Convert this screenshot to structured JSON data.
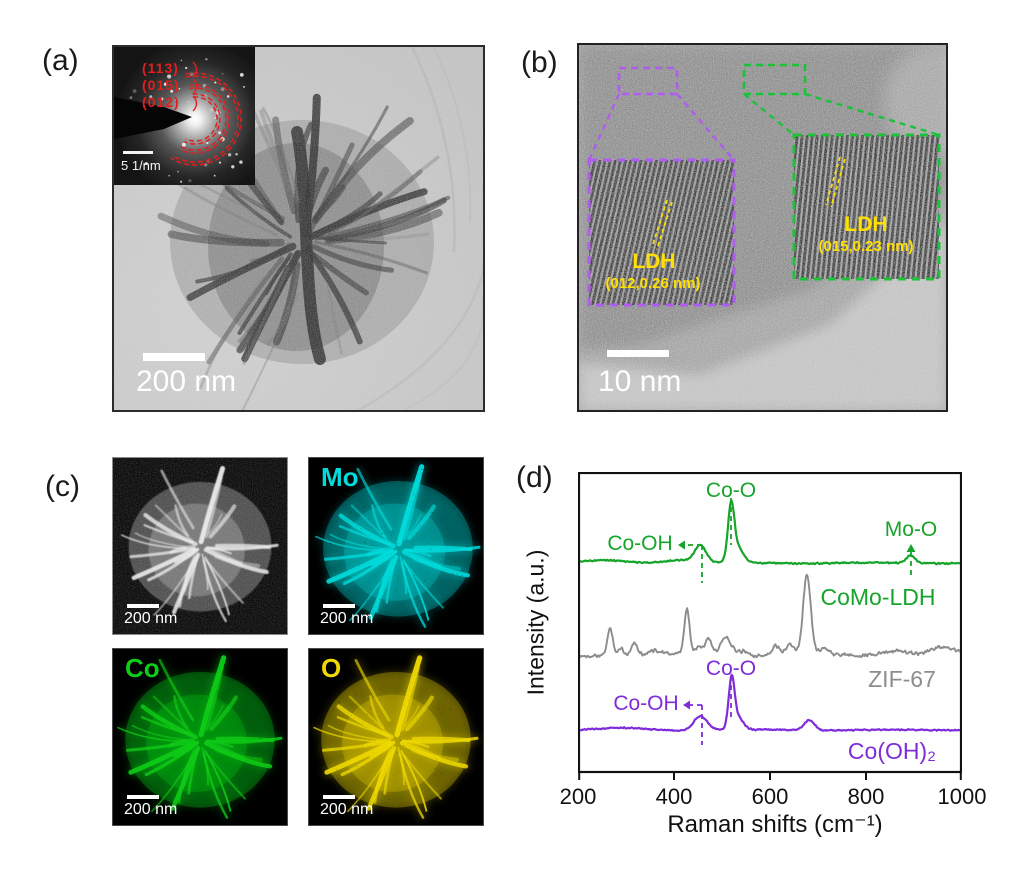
{
  "figure": {
    "panel_a": {
      "label": "(a)",
      "scale_bar": "200 nm",
      "saed": {
        "rings": [
          "(113)",
          "(015)",
          "(012)"
        ],
        "ring_color": "#E0201F",
        "scale_bar": "5 1/nm"
      }
    },
    "panel_b": {
      "label": "(b)",
      "scale_bar": "10 nm",
      "insets": [
        {
          "title": "LDH",
          "detail": "(012,0.26 nm)",
          "box_color": "#B05CF0",
          "text_color": "#FFE000"
        },
        {
          "title": "LDH",
          "detail": "(015,0.23 nm)",
          "box_color": "#1CC239",
          "text_color": "#FFE000"
        }
      ]
    },
    "panel_c": {
      "label": "(c)",
      "maps": [
        {
          "label": "",
          "scale_bar": "200 nm",
          "color": "#ededed"
        },
        {
          "label": "Mo",
          "scale_bar": "200 nm",
          "color": "#00DCDC"
        },
        {
          "label": "Co",
          "scale_bar": "200 nm",
          "color": "#0ECC17"
        },
        {
          "label": "O",
          "scale_bar": "200 nm",
          "color": "#EFD900"
        }
      ]
    },
    "panel_d": {
      "label": "(d)"
    }
  },
  "chart_data": {
    "type": "line",
    "xlabel": "Raman shifts (cm⁻¹)",
    "ylabel": "Intensity (a.u.)",
    "xlim": [
      200,
      1000
    ],
    "x_ticks": [
      200,
      400,
      600,
      800,
      1000
    ],
    "grid": false,
    "legend_position": "inline-right",
    "series": [
      {
        "name": "CoMo-LDH",
        "color": "#17A42B",
        "baseline_au": 91,
        "noise_au": 0.9,
        "peaks_cm_h_w": [
          [
            455,
            17,
            12
          ],
          [
            519,
            52,
            6.5
          ],
          [
            531,
            15,
            13
          ],
          [
            405,
            3,
            30
          ],
          [
            893,
            8,
            9
          ],
          [
            260,
            2.5,
            45
          ]
        ]
      },
      {
        "name": "ZIF-67",
        "color": "#8C8C8C",
        "baseline_au": 183,
        "noise_au": 2.1,
        "peaks_cm_h_w": [
          [
            267,
            27,
            6
          ],
          [
            290,
            8,
            5
          ],
          [
            317,
            13,
            6
          ],
          [
            360,
            4,
            12
          ],
          [
            427,
            45,
            5.5
          ],
          [
            452,
            9,
            7
          ],
          [
            472,
            17,
            6.5
          ],
          [
            508,
            18,
            12
          ],
          [
            545,
            5,
            10
          ],
          [
            612,
            9,
            7
          ],
          [
            641,
            11,
            8
          ],
          [
            677,
            80,
            8
          ],
          [
            712,
            6,
            9
          ],
          [
            860,
            5,
            25
          ],
          [
            960,
            7,
            25
          ]
        ]
      },
      {
        "name": "Co(OH)₂",
        "color": "#7F2CDB",
        "baseline_au": 258,
        "noise_au": 0.8,
        "peaks_cm_h_w": [
          [
            455,
            14,
            14
          ],
          [
            520,
            46,
            6
          ],
          [
            531,
            13,
            12
          ],
          [
            682,
            10,
            11
          ],
          [
            300,
            2,
            40
          ]
        ]
      }
    ],
    "annotations": [
      {
        "text": "Co-OH",
        "series": "CoMo-LDH",
        "peak_cm": 455,
        "color": "#17A42B",
        "guide": {
          "vline": [
            124,
            73,
            111
          ],
          "harrow": [
            124,
            100,
            73
          ]
        }
      },
      {
        "text": "Co-O",
        "series": "CoMo-LDH",
        "peak_cm": 519,
        "color": "#17A42B",
        "guide": {
          "vline": [
            153,
            26,
            73
          ]
        }
      },
      {
        "text": "Mo-O",
        "series": "CoMo-LDH",
        "peak_cm": 893,
        "color": "#17A42B",
        "guide": {
          "vline": [
            333,
            80,
            106
          ],
          "uparrow": [
            333,
            72
          ]
        }
      },
      {
        "text": "Co-OH",
        "series": "Co(OH)₂",
        "peak_cm": 455,
        "color": "#7F2CDB",
        "guide": {
          "vline": [
            124,
            233,
            273
          ],
          "harrow": [
            124,
            105,
            233
          ]
        }
      },
      {
        "text": "Co-O",
        "series": "Co(OH)₂",
        "peak_cm": 520,
        "color": "#7F2CDB",
        "guide": {
          "vline": [
            153,
            204,
            246
          ]
        }
      }
    ]
  }
}
